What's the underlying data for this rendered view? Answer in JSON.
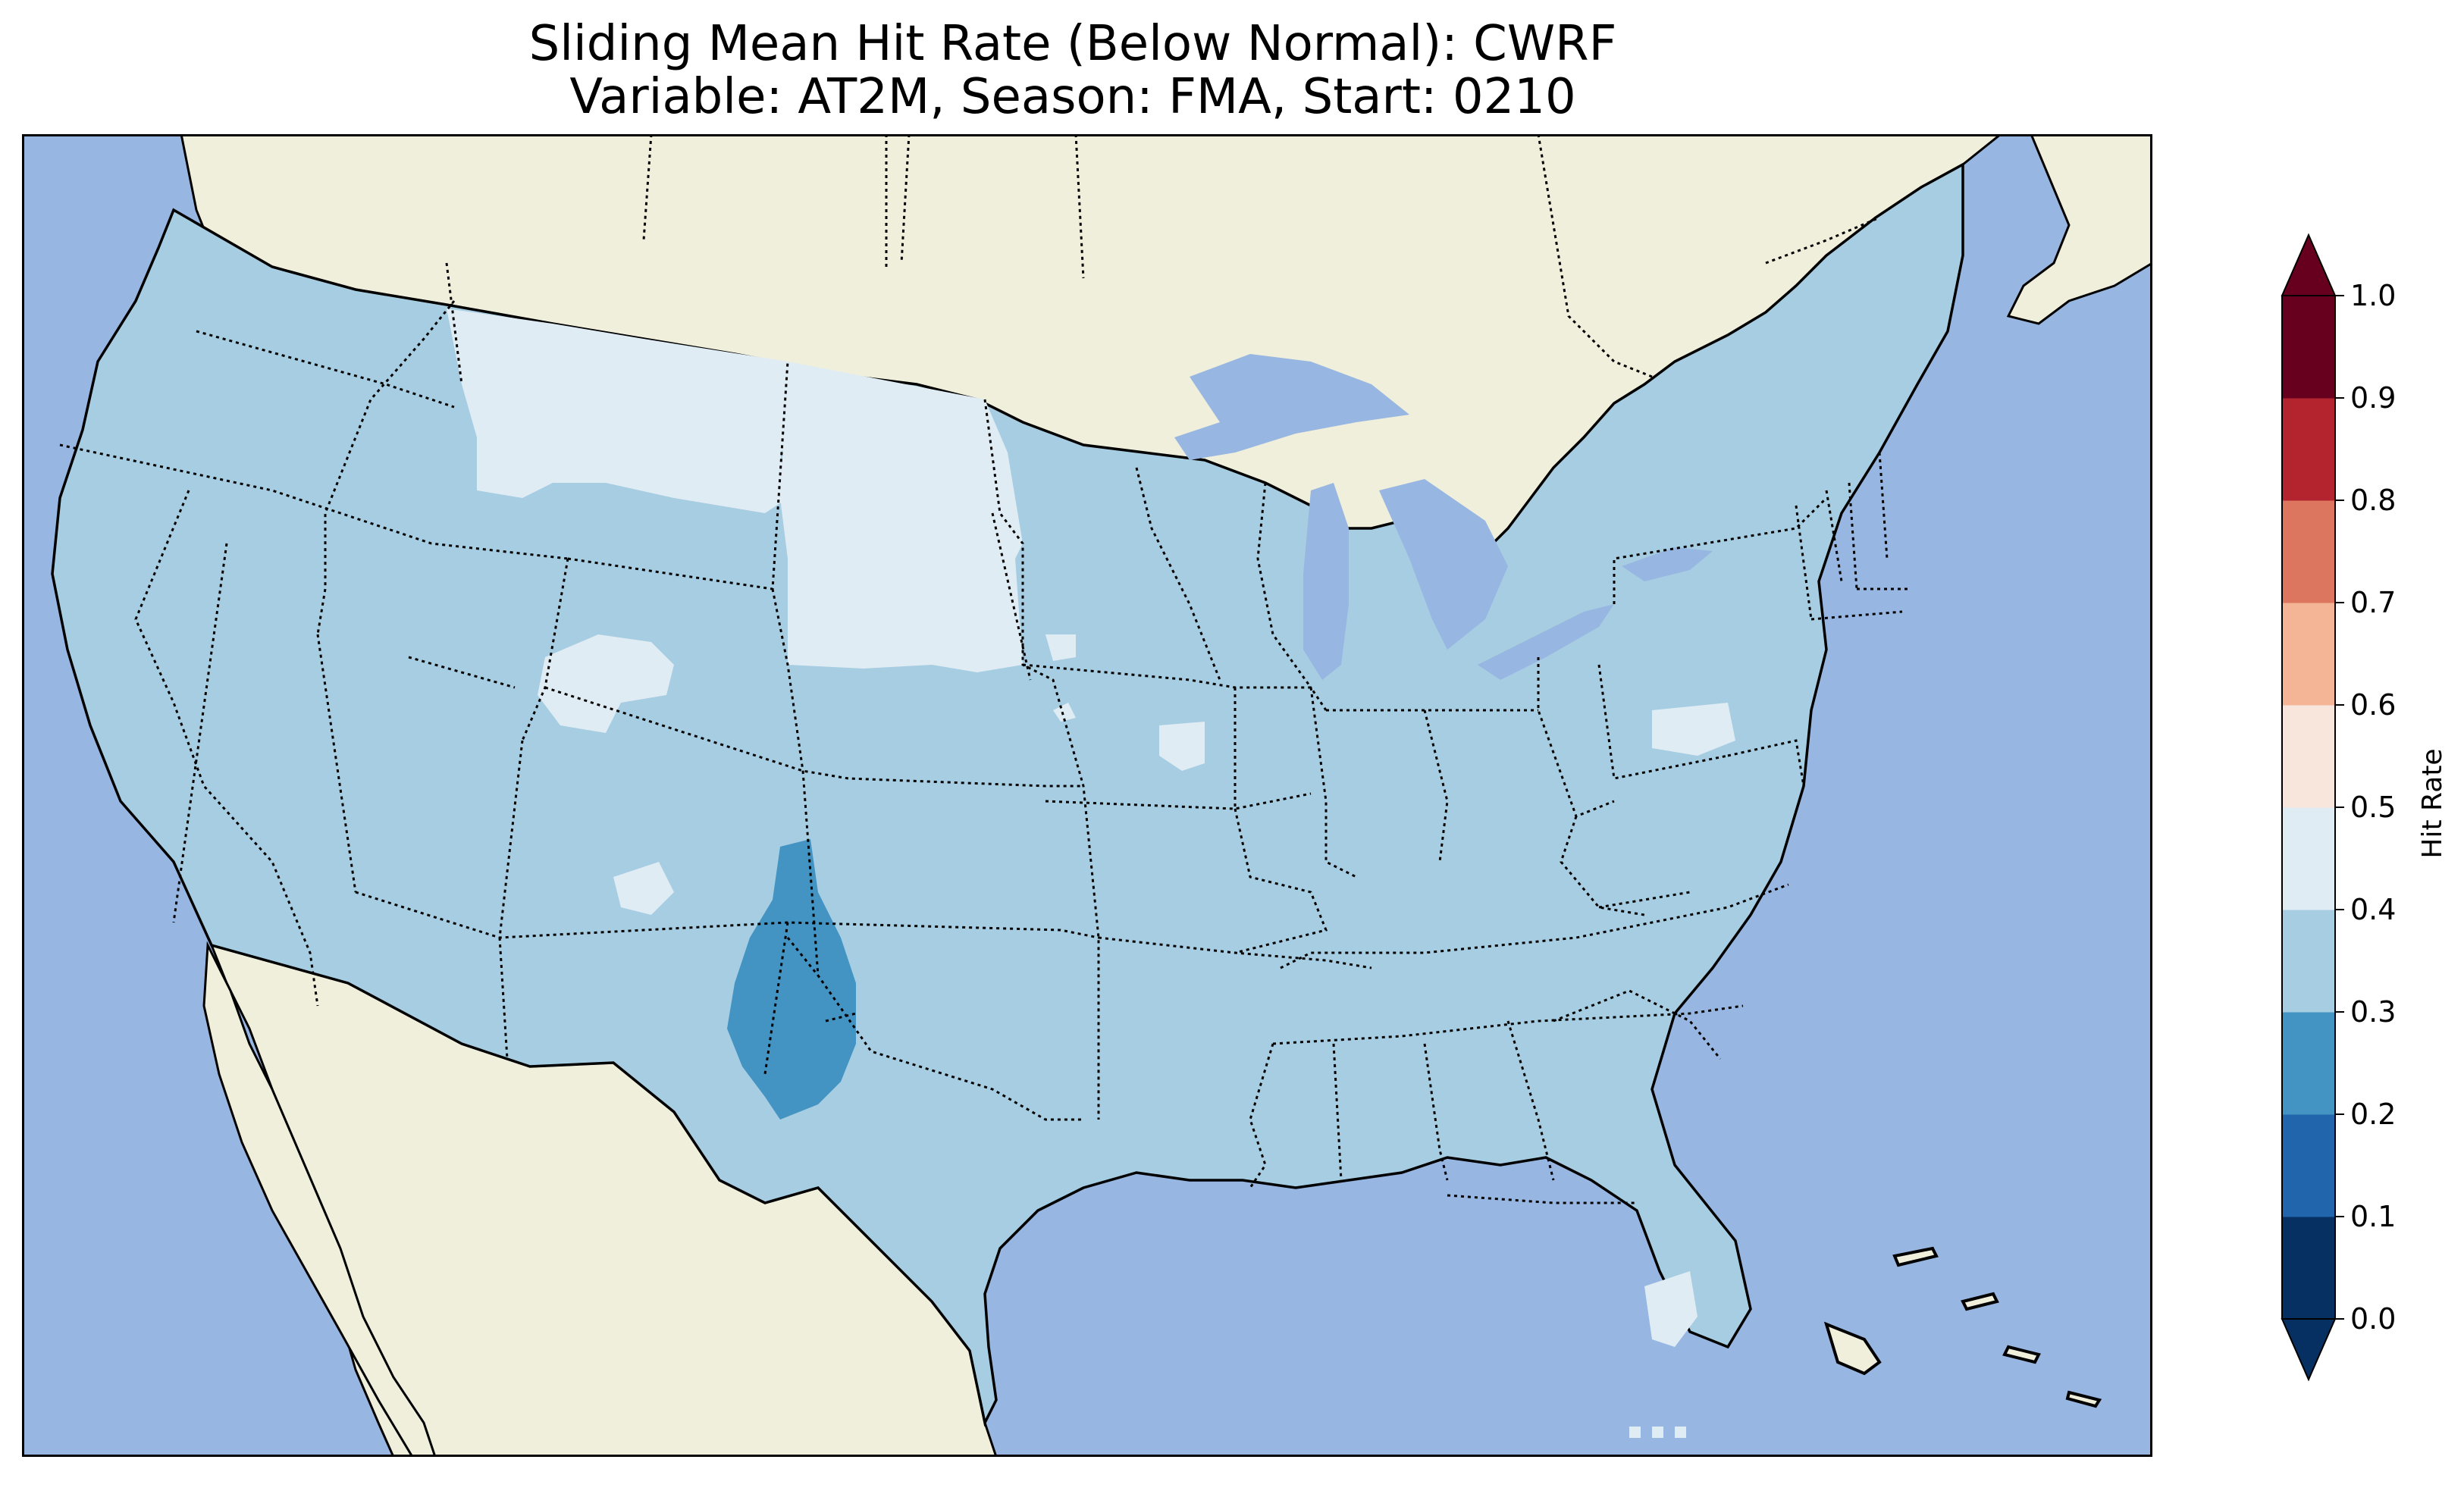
{
  "title": {
    "line1": "Sliding Mean Hit Rate (Below Normal): CWRF",
    "line2": "Variable: AT2M, Season: FMA, Start: 0210"
  },
  "colors": {
    "ocean": "#97b6e1",
    "land": "#efefdb",
    "coastline": "#000000",
    "hit_0_1": "#053061",
    "hit_1_2": "#2166ac",
    "hit_2_3": "#4393c3",
    "hit_3_4": "#a7cde2",
    "hit_4_5": "#e0ecf4",
    "hit_5_6": "#f8e6dc",
    "hit_6_7": "#f4b596",
    "hit_7_8": "#dd765e",
    "hit_8_9": "#b3242f",
    "hit_9_10": "#67001f"
  },
  "colorbar": {
    "label": "Hit Rate",
    "ticks": [
      "0.0",
      "0.1",
      "0.2",
      "0.3",
      "0.4",
      "0.5",
      "0.6",
      "0.7",
      "0.8",
      "0.9",
      "1.0"
    ],
    "bins": [
      "#053061",
      "#2166ac",
      "#4393c3",
      "#a7cde2",
      "#e0ecf4",
      "#f8e6dc",
      "#f4b596",
      "#dd765e",
      "#b3242f",
      "#67001f"
    ],
    "extend": "both"
  },
  "map": {
    "projection": "Lambert conformal",
    "region": "Contiguous United States",
    "dominant_bin": "0.3-0.4",
    "state_borders": "dotted",
    "coastlines": "solid",
    "regions": [
      {
        "name": "Northern Rockies / Montana",
        "bin": "0.4-0.5"
      },
      {
        "name": "North Dakota",
        "bin": "0.4-0.5"
      },
      {
        "name": "South Dakota",
        "bin": "0.4-0.5"
      },
      {
        "name": "Southern Wyoming",
        "bin": "0.4-0.5"
      },
      {
        "name": "Western Colorado",
        "bin": "0.4-0.5"
      },
      {
        "name": "Central Pennsylvania",
        "bin": "0.4-0.5"
      },
      {
        "name": "Central Florida",
        "bin": "0.4-0.5"
      },
      {
        "name": "Eastern New Mexico / West Texas",
        "bin": "0.2-0.3"
      }
    ]
  }
}
